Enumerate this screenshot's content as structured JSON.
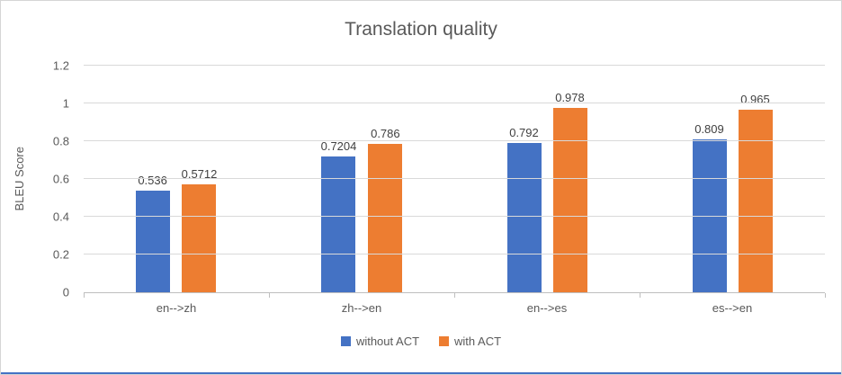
{
  "chart_data": {
    "type": "bar",
    "title": "Translation quality",
    "ylabel": "BLEU Score",
    "xlabel": "",
    "categories": [
      "en--&gt;zh",
      "zh--&gt;en",
      "en--&gt;es",
      "es--&gt;en"
    ],
    "categories_plain": [
      "en-->zh",
      "zh-->en",
      "en-->es",
      "es-->en"
    ],
    "series": [
      {
        "name": "without ACT",
        "color": "#4472c4",
        "values": [
          0.536,
          0.7204,
          0.792,
          0.809
        ],
        "labels": [
          "0.536",
          "0.7204",
          "0.792",
          "0.809"
        ]
      },
      {
        "name": "with ACT",
        "color": "#ed7d31",
        "values": [
          0.5712,
          0.786,
          0.978,
          0.965
        ],
        "labels": [
          "0.5712",
          "0.786",
          "0.978",
          "0.965"
        ]
      }
    ],
    "ylim": [
      0,
      1.2
    ],
    "yticks": [
      0,
      0.2,
      0.4,
      0.6,
      0.8,
      1,
      1.2
    ],
    "ytick_labels": [
      "0",
      "0.2",
      "0.4",
      "0.6",
      "0.8",
      "1",
      "1.2"
    ],
    "grid": true,
    "legend_position": "bottom",
    "colors": {
      "axis": "#bfbfbf",
      "gridline": "#d9d9d9",
      "text": "#595959",
      "data_label": "#404040",
      "bottom_edge": "#4472c4"
    }
  }
}
